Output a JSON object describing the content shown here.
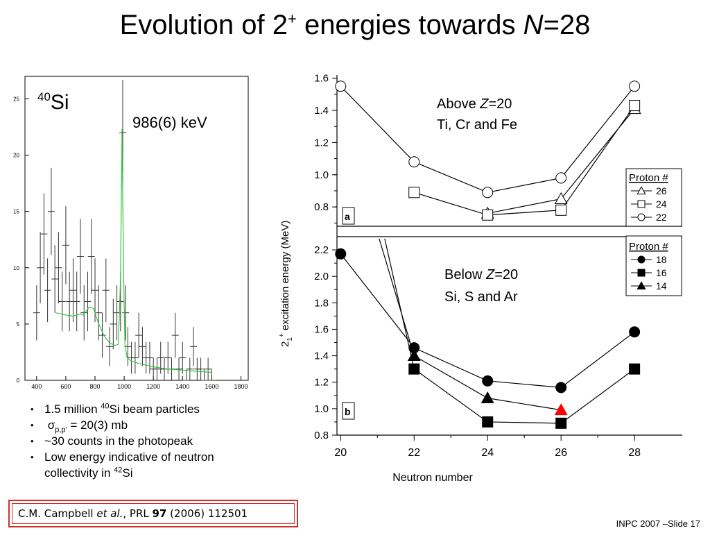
{
  "slide": {
    "title_prefix": "Evolution of 2",
    "title_sup": "+",
    "title_mid": " energies towards ",
    "title_N": "N",
    "title_end": "=28",
    "footer": "INPC 2007 –Slide 17"
  },
  "spectrum": {
    "isotope_mass": "40",
    "isotope_symbol": "Si",
    "peak_label": "986(6) keV",
    "x_ticks": [
      "400",
      "600",
      "800",
      "1000",
      "1200",
      "1400",
      "1600",
      "1800"
    ],
    "y_ticks": [
      "0",
      "5",
      "10",
      "15",
      "20",
      "25"
    ]
  },
  "bullets": {
    "b1_pre": "1.5 million ",
    "b1_sup": "40",
    "b1_post": "Si beam particles",
    "b2_sigma": "σ",
    "b2_sub": "p,p'",
    "b2_post": " = 20(3) mb",
    "b3": "~30 counts in the photopeak",
    "b4_line1": "Low energy indicative of neutron",
    "b4_line2_pre": "collectivity in ",
    "b4_sup": "42",
    "b4_post": "Si"
  },
  "reference": {
    "authors": "C.M. Campbell ",
    "etal": "et al.",
    "journal": ", PRL ",
    "volume": "97",
    "rest": " (2006) 112501"
  },
  "chart_data": [
    {
      "type": "histogram",
      "x_range": [
        320,
        1850
      ],
      "y_range": [
        0,
        27
      ],
      "x": [
        400,
        425,
        450,
        475,
        500,
        525,
        550,
        575,
        600,
        625,
        650,
        675,
        700,
        725,
        750,
        775,
        800,
        825,
        850,
        875,
        900,
        925,
        950,
        975,
        990,
        1010,
        1025,
        1050,
        1075,
        1100,
        1125,
        1150,
        1175,
        1200,
        1225,
        1250,
        1275,
        1300,
        1325,
        1350,
        1375,
        1400,
        1425,
        1450,
        1475,
        1500,
        1525,
        1550,
        1575,
        1600
      ],
      "counts": [
        6,
        10,
        13,
        8,
        15,
        9,
        10,
        7,
        12,
        7,
        8,
        7,
        11,
        6,
        7,
        11,
        8,
        6,
        4,
        8,
        3,
        5,
        6,
        7,
        22,
        6,
        3,
        2,
        2,
        4,
        3,
        2,
        2,
        1,
        1,
        2,
        1,
        2,
        1,
        4,
        1,
        2,
        0,
        1,
        3,
        1,
        1,
        0,
        1,
        0
      ],
      "fit_x": [
        530,
        600,
        650,
        700,
        720,
        760,
        790,
        820,
        860,
        900,
        940,
        960,
        975,
        985,
        995,
        1005,
        1020,
        1050,
        1100,
        1200,
        1300,
        1400,
        1500,
        1600
      ],
      "fit_y": [
        6.0,
        5.8,
        5.7,
        5.9,
        5.8,
        6.5,
        6.4,
        5.2,
        4.0,
        3.3,
        3.1,
        3.2,
        9,
        22.3,
        10,
        3.2,
        2.0,
        1.7,
        1.5,
        1.2,
        1.0,
        0.9,
        0.8,
        0.7
      ],
      "annotation": "986(6) keV"
    },
    {
      "type": "line",
      "panel": "a",
      "annotation_line1_pre": "Above ",
      "annotation_Z": "Z",
      "annotation_line1_post": "=20",
      "annotation_line2": "Ti, Cr and Fe",
      "legend_title": "Proton #",
      "y_range": [
        0.68,
        1.62
      ],
      "y_ticks": [
        "0.8",
        "1.0",
        "1.2",
        "1.4",
        "1.6"
      ],
      "series": [
        {
          "name": "26",
          "marker": "triangle-open",
          "x": [
            24,
            26,
            28
          ],
          "y": [
            0.76,
            0.85,
            1.41
          ]
        },
        {
          "name": "24",
          "marker": "square-open",
          "x": [
            22,
            24,
            26,
            28
          ],
          "y": [
            0.89,
            0.75,
            0.78,
            1.43
          ]
        },
        {
          "name": "22",
          "marker": "circle-open",
          "x": [
            20,
            22,
            24,
            26,
            28
          ],
          "y": [
            1.55,
            1.08,
            0.89,
            0.98,
            1.55
          ]
        }
      ]
    },
    {
      "type": "line",
      "panel": "b",
      "annotation_line1_pre": "Below ",
      "annotation_Z": "Z",
      "annotation_line1_post": "=20",
      "annotation_line2": "Si, S and Ar",
      "legend_title": "Proton #",
      "y_range": [
        0.8,
        2.3
      ],
      "y_ticks": [
        "0.8",
        "1.0",
        "1.2",
        "1.4",
        "1.6",
        "1.8",
        "2.0",
        "2.2"
      ],
      "x_ticks": [
        "20",
        "22",
        "24",
        "26",
        "28"
      ],
      "xlabel": "Neutron number",
      "ylabel": "excitation energy  (MeV)",
      "series": [
        {
          "name": "18",
          "marker": "circle-filled",
          "x": [
            20,
            22,
            24,
            26,
            28
          ],
          "y": [
            2.17,
            1.46,
            1.21,
            1.16,
            1.58
          ]
        },
        {
          "name": "16",
          "marker": "square-filled",
          "x": [
            22,
            24,
            26,
            28
          ],
          "y": [
            1.3,
            0.9,
            0.89,
            1.3
          ]
        },
        {
          "name": "14",
          "marker": "triangle-filled",
          "x": [
            22,
            24,
            26
          ],
          "y": [
            1.4,
            1.08,
            0.99
          ]
        }
      ],
      "highlight": {
        "x": 26,
        "y": 0.99,
        "color": "#ff0000"
      }
    }
  ],
  "colors": {
    "fit_curve": "#35c53f",
    "highlight": "#ff0000",
    "reference_border": "#d62b2b"
  }
}
